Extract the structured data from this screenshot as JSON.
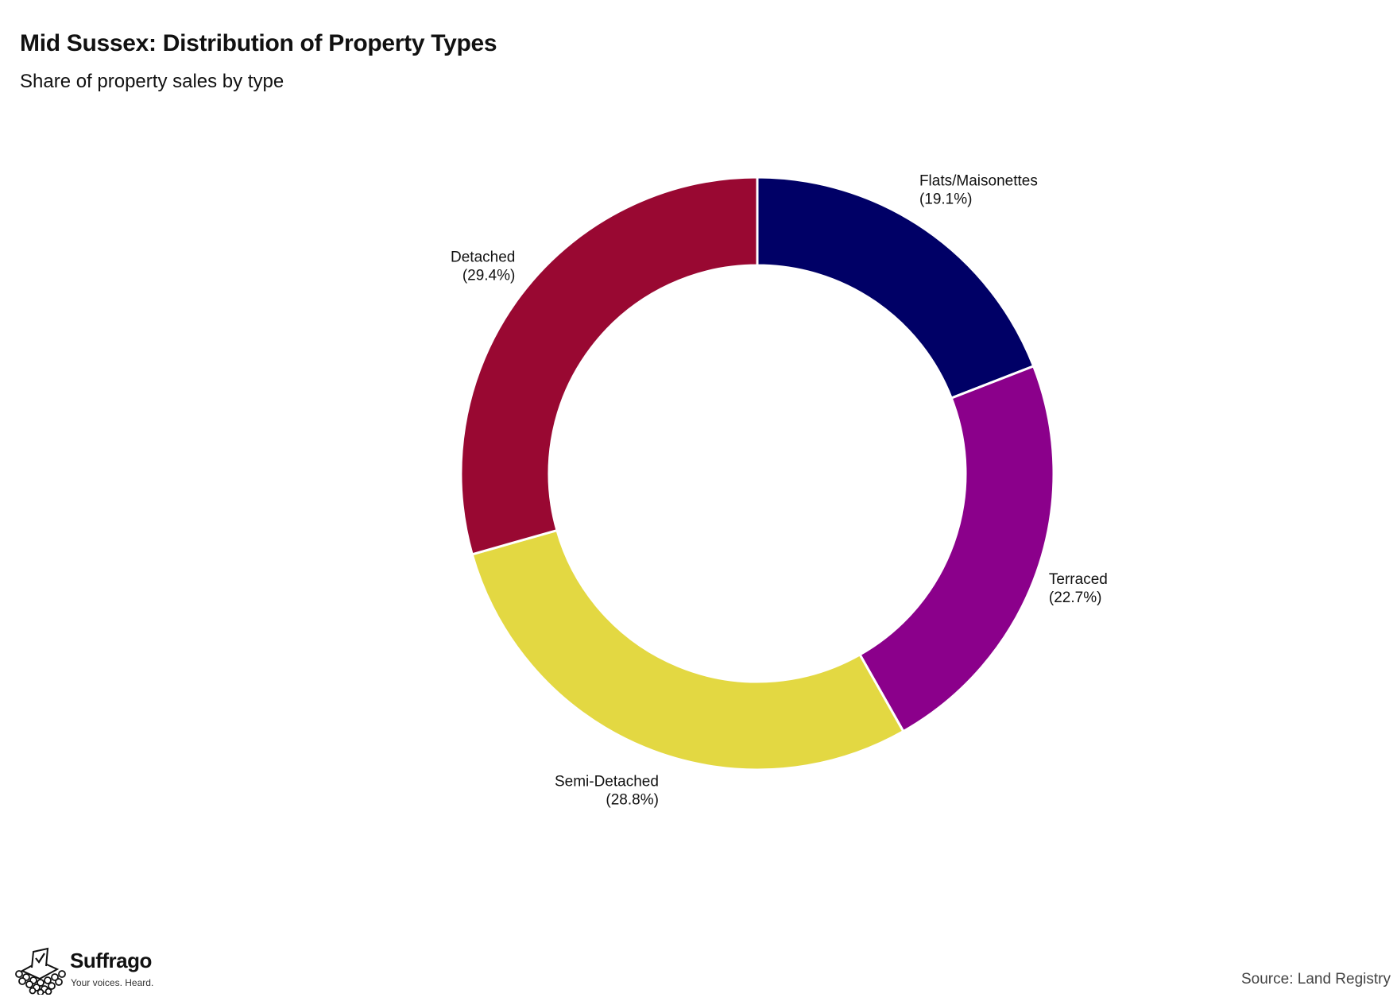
{
  "chart_data": {
    "type": "pie",
    "style": "donut",
    "title": "Mid Sussex: Distribution of Property Types",
    "subtitle": "Share of property sales by type",
    "slices": [
      {
        "label": "Flats/Maisonettes",
        "value_label": "(19.1%)",
        "value": 19.1,
        "color": "#000066"
      },
      {
        "label": "Terraced",
        "value_label": "(22.7%)",
        "value": 22.7,
        "color": "#8b008b"
      },
      {
        "label": "Semi-Detached",
        "value_label": "(28.8%)",
        "value": 28.8,
        "color": "#e3d842"
      },
      {
        "label": "Detached",
        "value_label": "(29.4%)",
        "value": 29.4,
        "color": "#990832"
      }
    ],
    "start_angle": "12 o'clock",
    "direction": "clockwise",
    "legend": "none",
    "source": "Source: Land Registry"
  },
  "logo": {
    "name": "Suffrago",
    "tagline": "Your voices. Heard.",
    "icon": "ballot-box-crowd-icon"
  }
}
